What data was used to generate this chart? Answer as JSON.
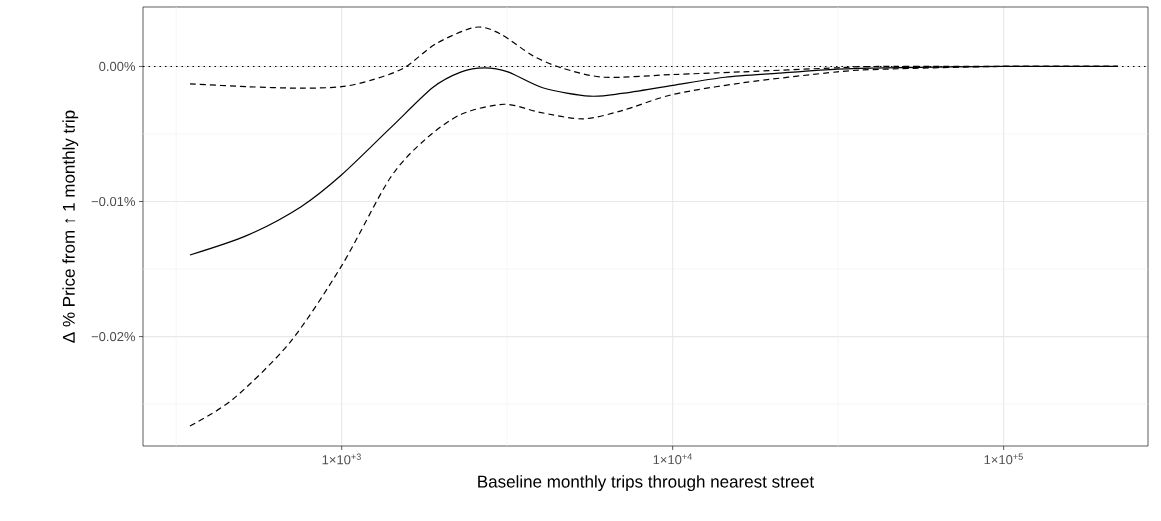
{
  "chart_data": {
    "type": "line",
    "xlabel": "Baseline monthly trips through nearest street",
    "ylabel": "Δ % Price from ↑ 1 monthly trip",
    "log": "x",
    "xlim": [
      251,
      273000
    ],
    "ylim": [
      -0.0281,
      0.0044
    ],
    "xticks": [
      {
        "value": 316.2,
        "label": null
      },
      {
        "value": 1000,
        "label": "1×10$^{+3}$"
      },
      {
        "value": 3162,
        "label": null
      },
      {
        "value": 10000,
        "label": "1×10$^{+4}$"
      },
      {
        "value": 31623,
        "label": null
      },
      {
        "value": 100000,
        "label": "1×10$^{+5}$"
      }
    ],
    "yticks": [
      {
        "value": -0.025,
        "label": null
      },
      {
        "value": -0.02,
        "label": "−0.02%"
      },
      {
        "value": -0.015,
        "label": null
      },
      {
        "value": -0.01,
        "label": "−0.01%"
      },
      {
        "value": -0.005,
        "label": null
      },
      {
        "value": 0,
        "label": "0.00%"
      }
    ],
    "grid": true,
    "ref_lines": [
      {
        "axis": "y",
        "value": 0,
        "line_style": "dotted",
        "color": "#000000"
      }
    ],
    "series": [
      {
        "color": "#000000",
        "line_style": "solid",
        "x": [
          348,
          518,
          752,
          1000,
          1399,
          1884,
          2298,
          2701,
          3177,
          4070,
          5619,
          7031,
          10000,
          14410,
          20890,
          31470,
          44030,
          100000,
          221300
        ],
        "values": [
          -0.01396,
          -0.01251,
          -0.0104,
          -0.00802,
          -0.00459,
          -0.00156,
          -0.0004,
          -0.0001,
          -0.0004,
          -0.0016,
          -0.0022,
          -0.002,
          -0.0014,
          -0.0008,
          -0.0005,
          -0.0002,
          -0.0001,
          0,
          0
        ]
      },
      {
        "color": "#000000",
        "line_style": "dashed",
        "x": [
          348,
          518,
          752,
          1000,
          1235,
          1545,
          1932,
          2538,
          3020,
          3777,
          4607,
          6209,
          10000,
          16320,
          31470,
          44030,
          221300
        ],
        "values": [
          -0.00129,
          -0.0015,
          -0.00161,
          -0.0015,
          -0.001,
          -0.0001,
          0.0017,
          0.0029,
          0.0024,
          0.0008,
          -0.0001,
          -0.0008,
          -0.0006,
          -0.0004,
          -0.0001,
          0,
          0
        ]
      },
      {
        "color": "#000000",
        "line_style": "dashed",
        "x": [
          348,
          469,
          698,
          1000,
          1399,
          1793,
          2298,
          3097,
          3969,
          5346,
          7031,
          10000,
          16320,
          31470,
          44030,
          100000,
          221300
        ],
        "values": [
          -0.02662,
          -0.02464,
          -0.02042,
          -0.01475,
          -0.00828,
          -0.00538,
          -0.00354,
          -0.0028,
          -0.0034,
          -0.00388,
          -0.00327,
          -0.00208,
          -0.00121,
          -0.0004,
          -0.0002,
          0,
          0
        ]
      }
    ]
  }
}
